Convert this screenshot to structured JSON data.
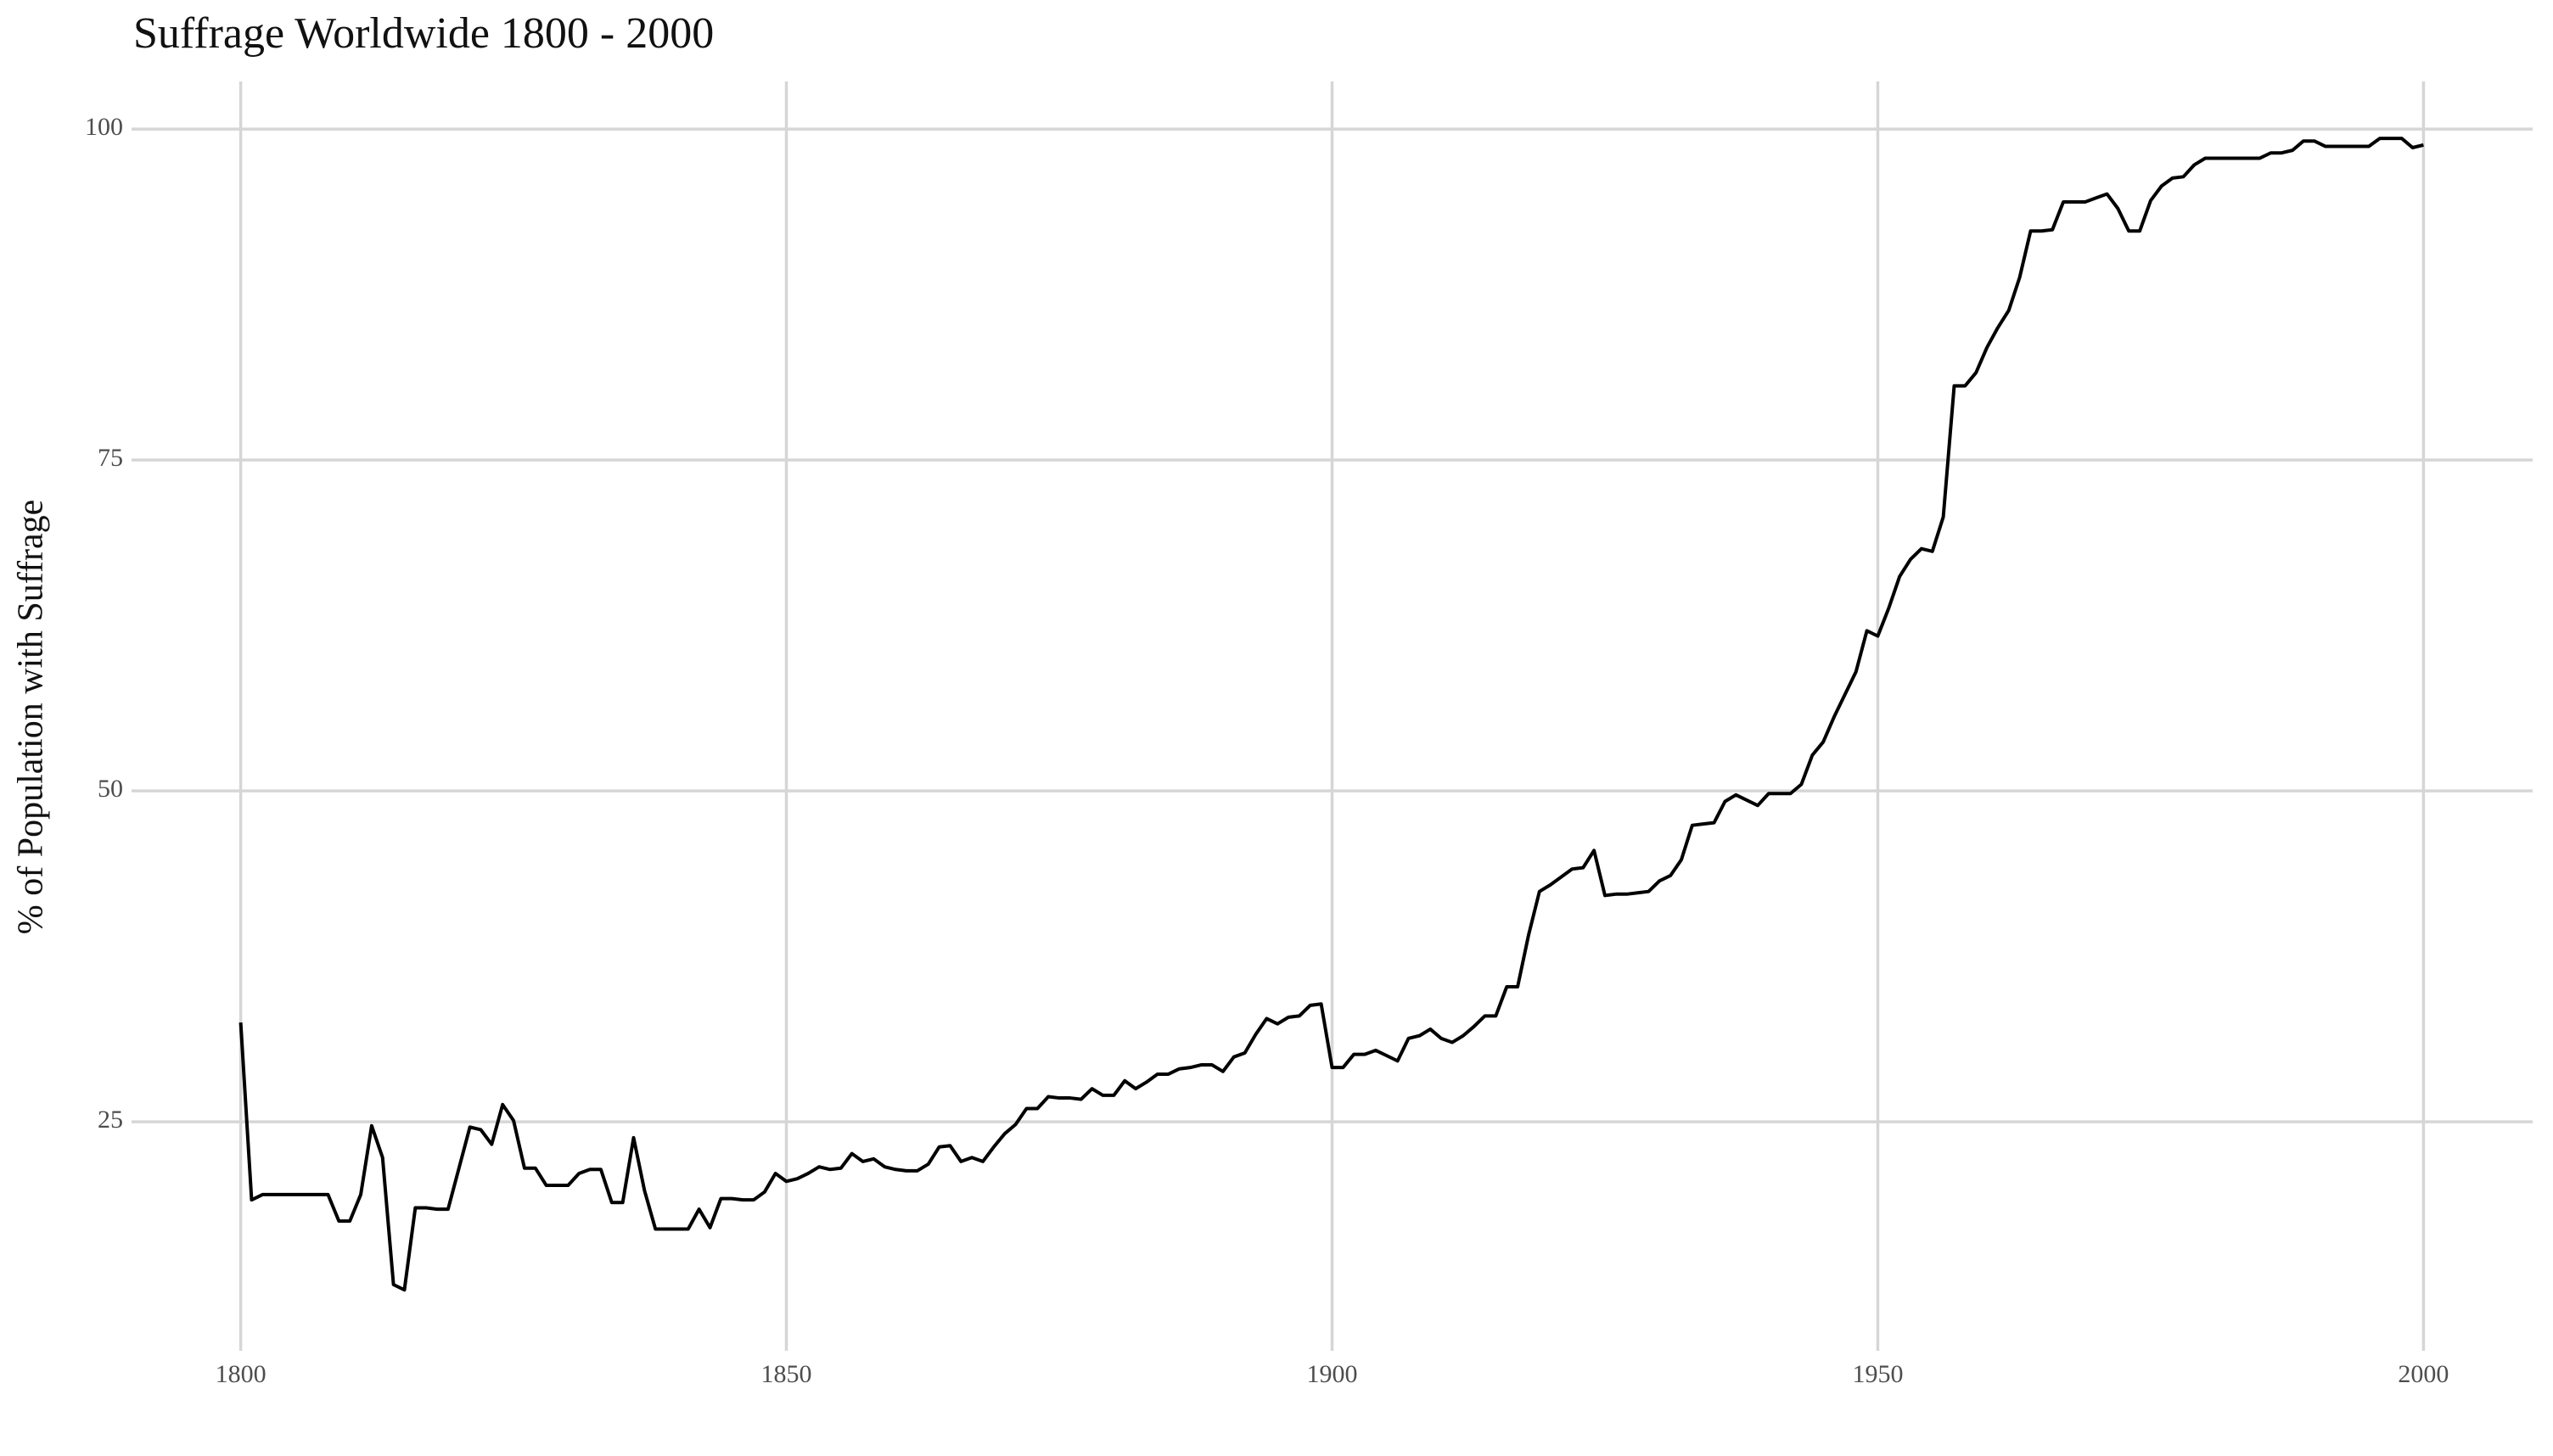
{
  "chart_data": {
    "type": "line",
    "title": "Suffrage Worldwide 1800 - 2000",
    "y_label": "% of Population with Suffrage",
    "x": [
      1800,
      1801,
      1802,
      1803,
      1804,
      1805,
      1806,
      1807,
      1808,
      1809,
      1810,
      1811,
      1812,
      1813,
      1814,
      1815,
      1816,
      1817,
      1818,
      1819,
      1820,
      1821,
      1822,
      1823,
      1824,
      1825,
      1826,
      1827,
      1828,
      1829,
      1830,
      1831,
      1832,
      1833,
      1834,
      1835,
      1836,
      1837,
      1838,
      1839,
      1840,
      1841,
      1842,
      1843,
      1844,
      1845,
      1846,
      1847,
      1848,
      1849,
      1850,
      1851,
      1852,
      1853,
      1854,
      1855,
      1856,
      1857,
      1858,
      1859,
      1860,
      1861,
      1862,
      1863,
      1864,
      1865,
      1866,
      1867,
      1868,
      1869,
      1870,
      1871,
      1872,
      1873,
      1874,
      1875,
      1876,
      1877,
      1878,
      1879,
      1880,
      1881,
      1882,
      1883,
      1884,
      1885,
      1886,
      1887,
      1888,
      1889,
      1890,
      1891,
      1892,
      1893,
      1894,
      1895,
      1896,
      1897,
      1898,
      1899,
      1900,
      1901,
      1902,
      1903,
      1904,
      1905,
      1906,
      1907,
      1908,
      1909,
      1910,
      1911,
      1912,
      1913,
      1914,
      1915,
      1916,
      1917,
      1918,
      1919,
      1920,
      1921,
      1922,
      1923,
      1924,
      1925,
      1926,
      1927,
      1928,
      1929,
      1930,
      1931,
      1932,
      1933,
      1934,
      1935,
      1936,
      1937,
      1938,
      1939,
      1940,
      1941,
      1942,
      1943,
      1944,
      1945,
      1946,
      1947,
      1948,
      1949,
      1950,
      1951,
      1952,
      1953,
      1954,
      1955,
      1956,
      1957,
      1958,
      1959,
      1960,
      1961,
      1962,
      1963,
      1964,
      1965,
      1966,
      1967,
      1968,
      1969,
      1970,
      1971,
      1972,
      1973,
      1974,
      1975,
      1976,
      1977,
      1978,
      1979,
      1980,
      1981,
      1982,
      1983,
      1984,
      1985,
      1986,
      1987,
      1988,
      1989,
      1990,
      1991,
      1992,
      1993,
      1994,
      1995,
      1996,
      1997,
      1998,
      1999,
      2000
    ],
    "values": [
      32.5,
      19.1,
      19.5,
      19.5,
      19.5,
      19.5,
      19.5,
      19.5,
      19.5,
      17.5,
      17.5,
      19.5,
      24.7,
      22.3,
      12.7,
      12.3,
      18.5,
      18.5,
      18.4,
      18.4,
      21.5,
      24.6,
      24.4,
      23.3,
      26.3,
      25.1,
      21.5,
      21.5,
      20.2,
      20.2,
      20.2,
      21.1,
      21.4,
      21.4,
      18.9,
      18.9,
      23.8,
      19.8,
      16.9,
      16.9,
      16.9,
      16.9,
      18.4,
      17.0,
      19.2,
      19.2,
      19.1,
      19.1,
      19.7,
      21.1,
      20.5,
      20.7,
      21.1,
      21.6,
      21.4,
      21.5,
      22.6,
      22.0,
      22.2,
      21.6,
      21.4,
      21.3,
      21.3,
      21.8,
      23.1,
      23.2,
      22.0,
      22.3,
      22.0,
      23.1,
      24.1,
      24.8,
      26.0,
      26.0,
      26.9,
      26.8,
      26.8,
      26.7,
      27.5,
      27.0,
      27.0,
      28.1,
      27.5,
      28.0,
      28.6,
      28.6,
      29.0,
      29.1,
      29.3,
      29.3,
      28.8,
      29.9,
      30.2,
      31.6,
      32.8,
      32.4,
      32.9,
      33.0,
      33.8,
      33.9,
      29.1,
      29.1,
      30.1,
      30.1,
      30.4,
      30.0,
      29.6,
      31.3,
      31.5,
      32.0,
      31.3,
      31.0,
      31.5,
      32.2,
      33.0,
      33.0,
      35.2,
      35.2,
      39.1,
      42.4,
      42.9,
      43.5,
      44.1,
      44.2,
      45.5,
      42.1,
      42.2,
      42.2,
      42.3,
      42.4,
      43.2,
      43.6,
      44.8,
      47.4,
      47.5,
      47.6,
      49.2,
      49.7,
      49.3,
      48.9,
      49.8,
      49.8,
      49.8,
      50.5,
      52.7,
      53.7,
      55.6,
      57.3,
      59.0,
      62.1,
      61.7,
      63.8,
      66.2,
      67.5,
      68.3,
      68.1,
      70.7,
      80.6,
      80.6,
      81.6,
      83.5,
      85.0,
      86.3,
      88.8,
      92.3,
      92.3,
      92.4,
      94.5,
      94.5,
      94.5,
      94.8,
      95.1,
      94.0,
      92.3,
      92.3,
      94.6,
      95.7,
      96.3,
      96.4,
      97.3,
      97.8,
      97.8,
      97.8,
      97.8,
      97.8,
      97.8,
      98.2,
      98.2,
      98.4,
      99.1,
      99.1,
      98.7,
      98.7,
      98.7,
      98.7,
      98.7,
      99.3,
      99.3,
      99.3,
      98.6,
      98.8
    ],
    "color": "#000000",
    "xlim": [
      1790,
      2010
    ],
    "xticks": [
      1800,
      1850,
      1900,
      1950,
      2000
    ],
    "ylim": [
      7.7,
      103.6
    ],
    "yticks": [
      25,
      50,
      75,
      100
    ],
    "grid": true
  }
}
